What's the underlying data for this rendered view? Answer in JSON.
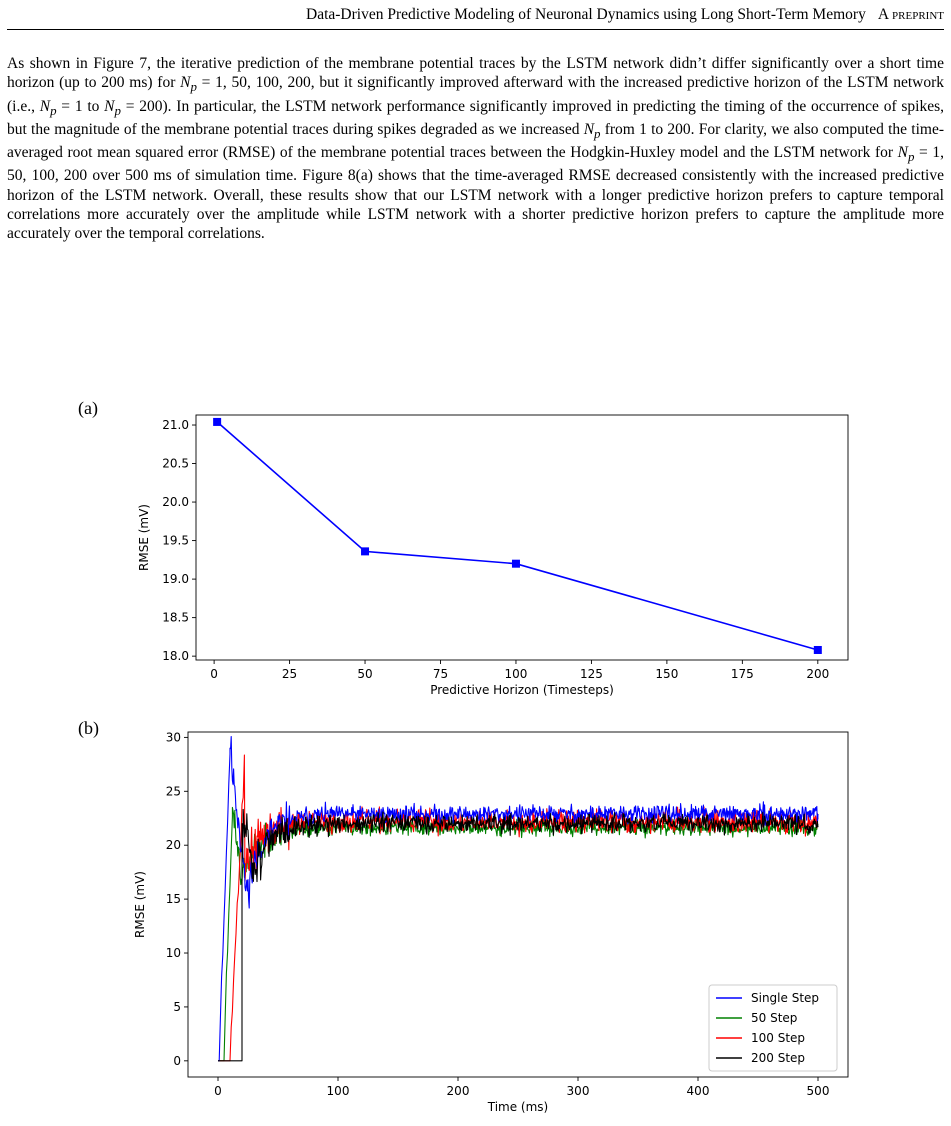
{
  "header": {
    "title": "Data-Driven Predictive Modeling of Neuronal Dynamics using Long Short-Term Memory",
    "tag": "A preprint"
  },
  "paragraph": {
    "s1": "As shown in Figure 7, the iterative prediction of the membrane potential traces by the LSTM network didn’t differ significantly over a short time horizon (up to 200 ms) for ",
    "m1": "N",
    "m1sub": "p",
    "m1rest": " = 1, 50, 100, 200",
    "s2": ", but it significantly improved afterward with the increased predictive horizon of the LSTM network (i.e., ",
    "m2": "N",
    "m2sub": "p",
    "m2rest": " = 1",
    "s3": " to ",
    "m3": "N",
    "m3sub": "p",
    "m3rest": " = 200",
    "s4": "). In particular, the LSTM network performance significantly improved in predicting the timing of the occurrence of spikes, but the magnitude of the membrane potential traces during spikes degraded as we increased ",
    "m4": "N",
    "m4sub": "p",
    "s5": " from 1 to 200. For clarity, we also computed the time-averaged root mean squared error (RMSE) of the membrane potential traces between the Hodgkin-Huxley model and the LSTM network for ",
    "m5": "N",
    "m5sub": "p",
    "m5rest": " = 1, 50, 100, 200",
    "s6": " over 500 ms of simulation time. Figure 8(a) shows that the time-averaged RMSE decreased consistently with the increased predictive horizon of the LSTM network. Overall, these results show that our LSTM network with a longer predictive horizon prefers to capture temporal correlations more accurately over the amplitude while LSTM network with a shorter predictive horizon prefers to capture the amplitude more accurately over the temporal correlations."
  },
  "chart_data": [
    {
      "panel": "(a)",
      "type": "line",
      "xlabel": "Predictive Horizon (Timesteps)",
      "ylabel": "RMSE (mV)",
      "xlim": [
        -6,
        210
      ],
      "ylim": [
        17.95,
        21.13
      ],
      "xticks": [
        0,
        25,
        50,
        75,
        100,
        125,
        150,
        175,
        200
      ],
      "yticks": [
        18.0,
        18.5,
        19.0,
        19.5,
        20.0,
        20.5,
        21.0
      ],
      "ytick_labels": [
        "18.0",
        "18.5",
        "19.0",
        "19.5",
        "20.0",
        "20.5",
        "21.0"
      ],
      "grid": false,
      "color": "#0000ff",
      "marker": "square",
      "x": [
        1,
        50,
        100,
        200
      ],
      "y": [
        21.04,
        19.36,
        19.2,
        18.08
      ]
    },
    {
      "panel": "(b)",
      "type": "line",
      "xlabel": "Time (ms)",
      "ylabel": "RMSE (mV)",
      "xlim": [
        -25,
        525
      ],
      "ylim": [
        -1.5,
        30.5
      ],
      "xticks": [
        0,
        100,
        200,
        300,
        400,
        500
      ],
      "yticks": [
        0,
        5,
        10,
        15,
        20,
        25,
        30
      ],
      "grid": false,
      "legend_position": "lower-right",
      "series": [
        {
          "name": "Single Step",
          "color": "#0000ff",
          "start": 1,
          "peak": 29,
          "peak_t": 10,
          "dip": 15.5,
          "dip_t": 24,
          "plateau": 22.9,
          "noise": 0.55
        },
        {
          "name": "50 Step",
          "color": "#008000",
          "start": 5,
          "peak": 23.5,
          "peak_t": 12,
          "dip": 17,
          "dip_t": 20,
          "plateau": 21.6,
          "noise": 0.5
        },
        {
          "name": "100 Step",
          "color": "#ff0000",
          "start": 10,
          "peak": 27.5,
          "peak_t": 22,
          "dip": 15.6,
          "dip_t": 16,
          "plateau": 22.2,
          "noise": 0.75
        },
        {
          "name": "200 Step",
          "color": "#000000",
          "start": 20,
          "peak": 22,
          "peak_t": 22,
          "dip": 17.8,
          "dip_t": 30,
          "plateau": 22.0,
          "noise": 0.6
        }
      ]
    }
  ]
}
